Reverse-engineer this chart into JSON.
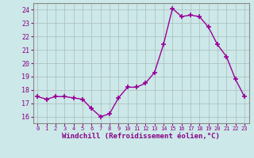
{
  "x": [
    0,
    1,
    2,
    3,
    4,
    5,
    6,
    7,
    8,
    9,
    10,
    11,
    12,
    13,
    14,
    15,
    16,
    17,
    18,
    19,
    20,
    21,
    22,
    23
  ],
  "y": [
    17.5,
    17.3,
    17.5,
    17.5,
    17.4,
    17.3,
    16.6,
    16.0,
    16.2,
    17.4,
    18.2,
    18.2,
    18.5,
    19.3,
    21.4,
    24.1,
    23.5,
    23.6,
    23.5,
    22.7,
    21.4,
    20.5,
    18.8,
    17.5
  ],
  "line_color": "#990099",
  "marker": "+",
  "marker_size": 4,
  "marker_linewidth": 1.2,
  "xlabel": "Windchill (Refroidissement éolien,°C)",
  "xlim": [
    -0.5,
    23.5
  ],
  "ylim": [
    15.5,
    24.5
  ],
  "yticks": [
    16,
    17,
    18,
    19,
    20,
    21,
    22,
    23,
    24
  ],
  "xticks": [
    0,
    1,
    2,
    3,
    4,
    5,
    6,
    7,
    8,
    9,
    10,
    11,
    12,
    13,
    14,
    15,
    16,
    17,
    18,
    19,
    20,
    21,
    22,
    23
  ],
  "bg_color": "#cce8e8",
  "grid_color": "#aabbbb",
  "tick_label_color": "#880088",
  "axis_label_color": "#880088",
  "spine_color": "#888888",
  "line_width": 1.0
}
